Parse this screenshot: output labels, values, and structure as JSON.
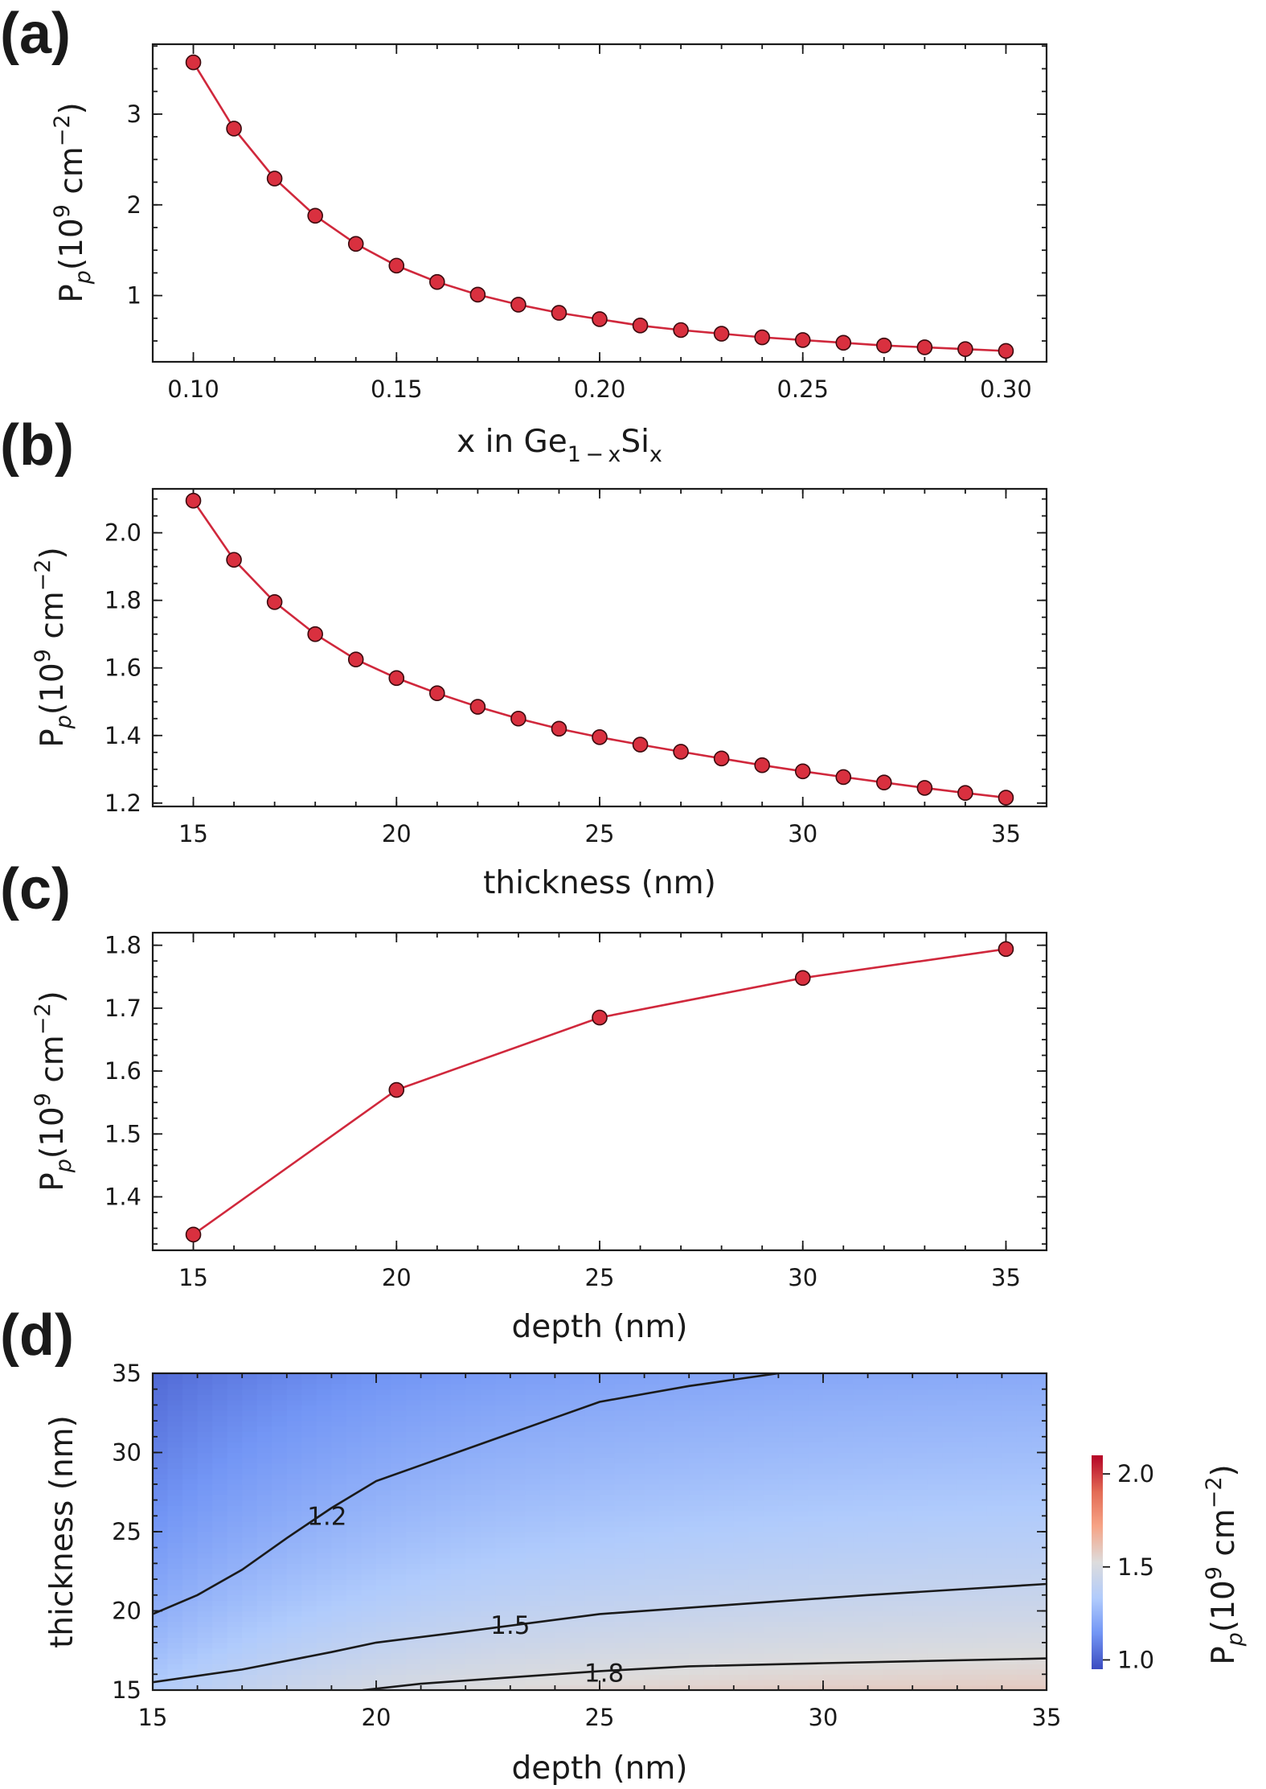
{
  "chart_data": [
    {
      "panel": "(a)",
      "type": "line",
      "xlabel": "x in Ge",
      "xlabel_sub": "1 − x",
      "xlabel_tail": "Si",
      "xlabel_tail_sub": "x",
      "ylabel": "P",
      "ylabel_sub": "p",
      "ylabel_units": "(10",
      "ylabel_exp": "9",
      "ylabel_units2": " cm",
      "ylabel_exp2": "−2",
      "ylabel_close": ")",
      "xlim": [
        0.09,
        0.31
      ],
      "ylim": [
        0.27,
        3.77
      ],
      "xticks": [
        0.1,
        0.15,
        0.2,
        0.25,
        0.3
      ],
      "xtick_labels": [
        "0.10",
        "0.15",
        "0.20",
        "0.25",
        "0.30"
      ],
      "yticks": [
        1,
        2,
        3
      ],
      "ytick_labels": [
        "1",
        "2",
        "3"
      ],
      "x": [
        0.1,
        0.11,
        0.12,
        0.13,
        0.14,
        0.15,
        0.16,
        0.17,
        0.18,
        0.19,
        0.2,
        0.21,
        0.22,
        0.23,
        0.24,
        0.25,
        0.26,
        0.27,
        0.28,
        0.29,
        0.3
      ],
      "y": [
        3.57,
        2.84,
        2.29,
        1.88,
        1.57,
        1.33,
        1.15,
        1.01,
        0.9,
        0.81,
        0.74,
        0.67,
        0.62,
        0.58,
        0.54,
        0.51,
        0.48,
        0.45,
        0.43,
        0.41,
        0.39
      ],
      "color": "#d9303f"
    },
    {
      "panel": "(b)",
      "type": "line",
      "xlabel": "thickness (nm)",
      "ylabel": "P",
      "ylabel_sub": "p",
      "ylabel_units": "(10",
      "ylabel_exp": "9",
      "ylabel_units2": " cm",
      "ylabel_exp2": "−2",
      "ylabel_close": ")",
      "xlim": [
        14.0,
        36.0
      ],
      "ylim": [
        1.19,
        2.13
      ],
      "xticks": [
        15,
        20,
        25,
        30,
        35
      ],
      "xtick_labels": [
        "15",
        "20",
        "25",
        "30",
        "35"
      ],
      "yticks": [
        1.2,
        1.4,
        1.6,
        1.8,
        2.0
      ],
      "ytick_labels": [
        "1.2",
        "1.4",
        "1.6",
        "1.8",
        "2.0"
      ],
      "x": [
        15,
        16,
        17,
        18,
        19,
        20,
        21,
        22,
        23,
        24,
        25,
        26,
        27,
        28,
        29,
        30,
        31,
        32,
        33,
        34,
        35
      ],
      "y": [
        2.095,
        1.92,
        1.795,
        1.7,
        1.625,
        1.57,
        1.525,
        1.485,
        1.45,
        1.42,
        1.395,
        1.373,
        1.352,
        1.332,
        1.312,
        1.294,
        1.277,
        1.261,
        1.245,
        1.23,
        1.216
      ],
      "color": "#d9303f"
    },
    {
      "panel": "(c)",
      "type": "line",
      "xlabel": "depth (nm)",
      "ylabel": "P",
      "ylabel_sub": "p",
      "ylabel_units": "(10",
      "ylabel_exp": "9",
      "ylabel_units2": " cm",
      "ylabel_exp2": "−2",
      "ylabel_close": ")",
      "xlim": [
        14.0,
        36.0
      ],
      "ylim": [
        1.315,
        1.82
      ],
      "xticks": [
        15,
        20,
        25,
        30,
        35
      ],
      "xtick_labels": [
        "15",
        "20",
        "25",
        "30",
        "35"
      ],
      "yticks": [
        1.4,
        1.5,
        1.6,
        1.7,
        1.8
      ],
      "ytick_labels": [
        "1.4",
        "1.5",
        "1.6",
        "1.7",
        "1.8"
      ],
      "x": [
        15,
        20,
        25,
        30,
        35
      ],
      "y": [
        1.34,
        1.57,
        1.685,
        1.748,
        1.794
      ],
      "color": "#d9303f"
    },
    {
      "panel": "(d)",
      "type": "heatmap",
      "xlabel": "depth (nm)",
      "ylabel": "thickness (nm)",
      "xlim": [
        15,
        35
      ],
      "ylim": [
        15,
        35
      ],
      "xticks": [
        15,
        20,
        25,
        30,
        35
      ],
      "xtick_labels": [
        "15",
        "20",
        "25",
        "30",
        "35"
      ],
      "yticks": [
        15,
        20,
        25,
        30,
        35
      ],
      "ytick_labels": [
        "15",
        "20",
        "25",
        "30",
        "35"
      ],
      "colormap": "coolwarm",
      "colormap_stops": [
        "#3b4cc0",
        "#7396f5",
        "#b0cbfc",
        "#dddcdc",
        "#f6a385",
        "#e36b55",
        "#b40426"
      ],
      "clim": [
        0.95,
        2.1
      ],
      "colorbar": {
        "ticks": [
          1.0,
          1.5,
          2.0
        ],
        "tick_labels": [
          "1.0",
          "1.5",
          "2.0"
        ],
        "label": "P",
        "label_sub": "p",
        "label_units": "(10",
        "label_exp": "9",
        "label_units2": " cm",
        "label_exp2": "−2",
        "label_close": ")"
      },
      "contours": [
        {
          "level": 1.2,
          "label": "1.2",
          "x": [
            15,
            16,
            17,
            18,
            19,
            20,
            21,
            22,
            23,
            24,
            25,
            26,
            27,
            28,
            29
          ],
          "y": [
            19.8,
            21.0,
            22.6,
            24.6,
            26.5,
            28.2,
            29.2,
            30.2,
            31.2,
            32.2,
            33.2,
            33.7,
            34.2,
            34.6,
            35.0
          ],
          "label_at": [
            18.9,
            26.0
          ]
        },
        {
          "level": 1.5,
          "label": "1.5",
          "x": [
            15,
            17,
            19,
            20,
            22,
            25,
            28,
            31,
            35
          ],
          "y": [
            15.5,
            16.3,
            17.4,
            18.0,
            18.7,
            19.8,
            20.4,
            21.0,
            21.7
          ],
          "label_at": [
            23.0,
            19.1
          ]
        },
        {
          "level": 1.8,
          "label": "1.8",
          "x": [
            19.7,
            21,
            23,
            25,
            27,
            30,
            35
          ],
          "y": [
            15.0,
            15.4,
            15.8,
            16.2,
            16.5,
            16.7,
            17.0
          ],
          "label_at": [
            25.1,
            16.1
          ]
        }
      ]
    }
  ]
}
